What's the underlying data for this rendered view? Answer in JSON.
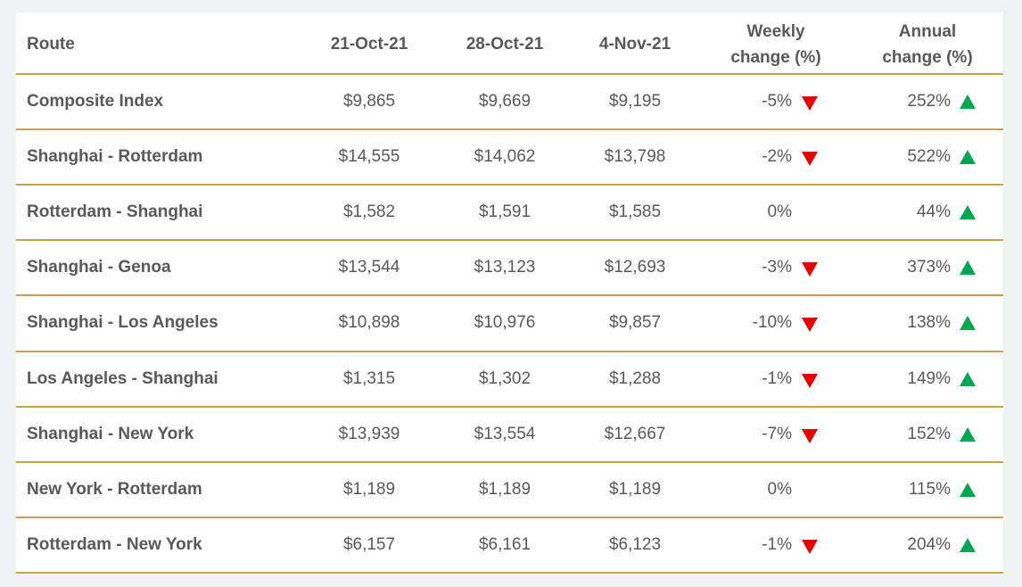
{
  "table": {
    "header": [
      "Route",
      "21-Oct-21",
      "28-Oct-21",
      "4-Nov-21",
      "Weekly change (%)",
      "Annual change (%)"
    ],
    "rows": [
      [
        "Composite Index",
        "$9,865",
        "$9,669",
        "$9,195",
        "-5%",
        "252%"
      ],
      [
        "Shanghai - Rotterdam",
        "$14,555",
        "$14,062",
        "$13,798",
        "-2%",
        "522%"
      ],
      [
        "Rotterdam - Shanghai",
        "$1,582",
        "$1,591",
        "$1,585",
        "0%",
        "44%"
      ],
      [
        "Shanghai - Genoa",
        "$13,544",
        "$13,123",
        "$12,693",
        "-3%",
        "373%"
      ],
      [
        "Shanghai - Los Angeles",
        "$10,898",
        "$10,976",
        "$9,857",
        "-10%",
        "138%"
      ],
      [
        "Los Angeles - Shanghai",
        "$1,315",
        "$1,302",
        "$1,288",
        "-1%",
        "149%"
      ],
      [
        "Shanghai - New York",
        "$13,939",
        "$13,554",
        "$12,667",
        "-7%",
        "152%"
      ],
      [
        "New York - Rotterdam",
        "$1,189",
        "$1,189",
        "$1,189",
        "0%",
        "115%"
      ],
      [
        "Rotterdam - New York",
        "$6,157",
        "$6,161",
        "$6,123",
        "-1%",
        "204%"
      ]
    ]
  }
}
